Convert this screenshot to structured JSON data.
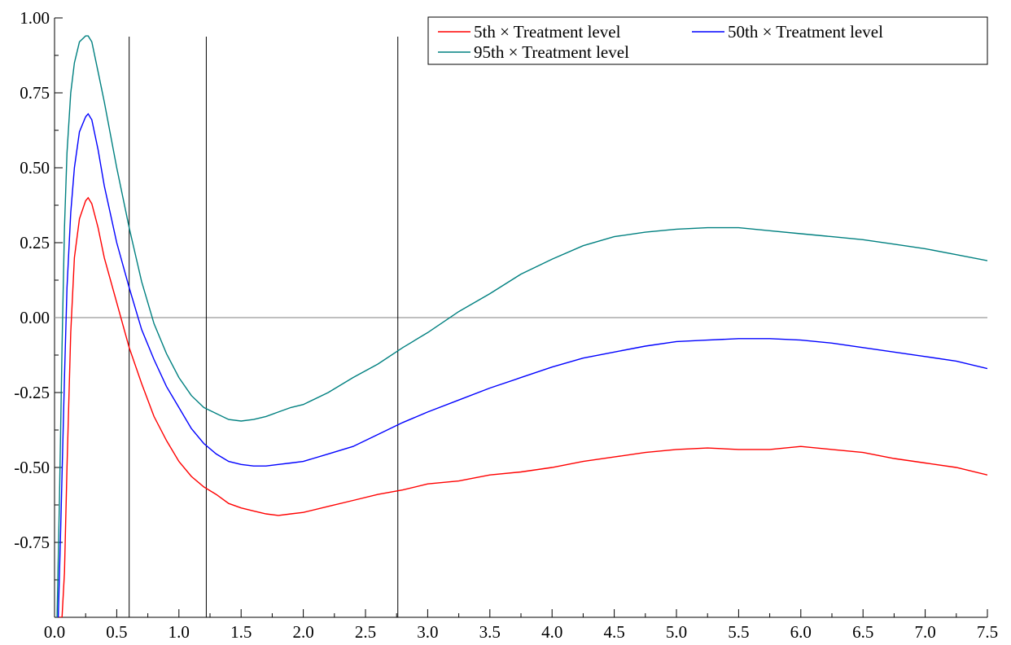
{
  "chart_data": {
    "type": "line",
    "title": "",
    "xlabel": "",
    "ylabel": "",
    "xlim": [
      0.0,
      7.5
    ],
    "ylim": [
      -1.0,
      1.0
    ],
    "grid": false,
    "legend_position": "top-right",
    "x_ticks": [
      "0.0",
      "0.5",
      "1.0",
      "1.5",
      "2.0",
      "2.5",
      "3.0",
      "3.5",
      "4.0",
      "4.5",
      "5.0",
      "5.5",
      "6.0",
      "6.5",
      "7.0",
      "7.5"
    ],
    "y_ticks": [
      "1.00",
      "0.75",
      "0.50",
      "0.25",
      "0.00",
      "-0.25",
      "-0.50",
      "-0.75"
    ],
    "vertical_lines": [
      0.6,
      1.22,
      2.76
    ],
    "zero_line": 0.0,
    "series": [
      {
        "name": "5th × Treatment level",
        "color": "#ff0000",
        "points": [
          [
            0.02,
            -1.0
          ],
          [
            0.06,
            -1.0
          ],
          [
            0.08,
            -0.85
          ],
          [
            0.1,
            -0.5
          ],
          [
            0.13,
            -0.05
          ],
          [
            0.16,
            0.2
          ],
          [
            0.2,
            0.33
          ],
          [
            0.25,
            0.39
          ],
          [
            0.27,
            0.4
          ],
          [
            0.3,
            0.38
          ],
          [
            0.35,
            0.3
          ],
          [
            0.4,
            0.2
          ],
          [
            0.5,
            0.05
          ],
          [
            0.6,
            -0.1
          ],
          [
            0.7,
            -0.22
          ],
          [
            0.8,
            -0.33
          ],
          [
            0.9,
            -0.41
          ],
          [
            1.0,
            -0.48
          ],
          [
            1.1,
            -0.53
          ],
          [
            1.2,
            -0.565
          ],
          [
            1.3,
            -0.59
          ],
          [
            1.4,
            -0.62
          ],
          [
            1.5,
            -0.635
          ],
          [
            1.6,
            -0.645
          ],
          [
            1.7,
            -0.655
          ],
          [
            1.8,
            -0.66
          ],
          [
            1.9,
            -0.655
          ],
          [
            2.0,
            -0.65
          ],
          [
            2.2,
            -0.63
          ],
          [
            2.4,
            -0.61
          ],
          [
            2.6,
            -0.59
          ],
          [
            2.8,
            -0.575
          ],
          [
            3.0,
            -0.555
          ],
          [
            3.25,
            -0.545
          ],
          [
            3.5,
            -0.525
          ],
          [
            3.75,
            -0.515
          ],
          [
            4.0,
            -0.5
          ],
          [
            4.25,
            -0.48
          ],
          [
            4.5,
            -0.465
          ],
          [
            4.75,
            -0.45
          ],
          [
            5.0,
            -0.44
          ],
          [
            5.25,
            -0.435
          ],
          [
            5.5,
            -0.44
          ],
          [
            5.75,
            -0.44
          ],
          [
            6.0,
            -0.43
          ],
          [
            6.25,
            -0.44
          ],
          [
            6.5,
            -0.45
          ],
          [
            6.75,
            -0.47
          ],
          [
            7.0,
            -0.485
          ],
          [
            7.25,
            -0.5
          ],
          [
            7.5,
            -0.525
          ]
        ]
      },
      {
        "name": "50th × Treatment level",
        "color": "#0000ff",
        "points": [
          [
            0.03,
            -1.0
          ],
          [
            0.05,
            -0.7
          ],
          [
            0.08,
            -0.2
          ],
          [
            0.1,
            0.1
          ],
          [
            0.13,
            0.35
          ],
          [
            0.16,
            0.5
          ],
          [
            0.2,
            0.62
          ],
          [
            0.25,
            0.67
          ],
          [
            0.27,
            0.68
          ],
          [
            0.3,
            0.66
          ],
          [
            0.35,
            0.56
          ],
          [
            0.4,
            0.44
          ],
          [
            0.5,
            0.25
          ],
          [
            0.6,
            0.1
          ],
          [
            0.7,
            -0.04
          ],
          [
            0.8,
            -0.14
          ],
          [
            0.9,
            -0.23
          ],
          [
            1.0,
            -0.3
          ],
          [
            1.1,
            -0.37
          ],
          [
            1.2,
            -0.42
          ],
          [
            1.3,
            -0.455
          ],
          [
            1.4,
            -0.48
          ],
          [
            1.5,
            -0.49
          ],
          [
            1.6,
            -0.495
          ],
          [
            1.7,
            -0.495
          ],
          [
            1.8,
            -0.49
          ],
          [
            1.9,
            -0.485
          ],
          [
            2.0,
            -0.48
          ],
          [
            2.2,
            -0.455
          ],
          [
            2.4,
            -0.43
          ],
          [
            2.6,
            -0.39
          ],
          [
            2.8,
            -0.35
          ],
          [
            3.0,
            -0.315
          ],
          [
            3.25,
            -0.275
          ],
          [
            3.5,
            -0.235
          ],
          [
            3.75,
            -0.2
          ],
          [
            4.0,
            -0.165
          ],
          [
            4.25,
            -0.135
          ],
          [
            4.5,
            -0.115
          ],
          [
            4.75,
            -0.095
          ],
          [
            5.0,
            -0.08
          ],
          [
            5.25,
            -0.075
          ],
          [
            5.5,
            -0.07
          ],
          [
            5.75,
            -0.07
          ],
          [
            6.0,
            -0.075
          ],
          [
            6.25,
            -0.085
          ],
          [
            6.5,
            -0.1
          ],
          [
            6.75,
            -0.115
          ],
          [
            7.0,
            -0.13
          ],
          [
            7.25,
            -0.145
          ],
          [
            7.5,
            -0.17
          ]
        ]
      },
      {
        "name": "95th × Treatment level",
        "color": "#008080",
        "points": [
          [
            0.02,
            -1.0
          ],
          [
            0.04,
            -0.6
          ],
          [
            0.06,
            -0.1
          ],
          [
            0.08,
            0.3
          ],
          [
            0.1,
            0.55
          ],
          [
            0.13,
            0.75
          ],
          [
            0.16,
            0.85
          ],
          [
            0.2,
            0.92
          ],
          [
            0.25,
            0.94
          ],
          [
            0.27,
            0.94
          ],
          [
            0.3,
            0.92
          ],
          [
            0.35,
            0.82
          ],
          [
            0.4,
            0.72
          ],
          [
            0.5,
            0.5
          ],
          [
            0.6,
            0.3
          ],
          [
            0.7,
            0.12
          ],
          [
            0.8,
            -0.02
          ],
          [
            0.9,
            -0.12
          ],
          [
            1.0,
            -0.2
          ],
          [
            1.1,
            -0.26
          ],
          [
            1.2,
            -0.3
          ],
          [
            1.3,
            -0.32
          ],
          [
            1.4,
            -0.34
          ],
          [
            1.5,
            -0.345
          ],
          [
            1.6,
            -0.34
          ],
          [
            1.7,
            -0.33
          ],
          [
            1.8,
            -0.315
          ],
          [
            1.9,
            -0.3
          ],
          [
            2.0,
            -0.29
          ],
          [
            2.2,
            -0.25
          ],
          [
            2.4,
            -0.2
          ],
          [
            2.6,
            -0.155
          ],
          [
            2.8,
            -0.1
          ],
          [
            3.0,
            -0.05
          ],
          [
            3.25,
            0.02
          ],
          [
            3.5,
            0.08
          ],
          [
            3.75,
            0.145
          ],
          [
            4.0,
            0.195
          ],
          [
            4.25,
            0.24
          ],
          [
            4.5,
            0.27
          ],
          [
            4.75,
            0.285
          ],
          [
            5.0,
            0.295
          ],
          [
            5.25,
            0.3
          ],
          [
            5.5,
            0.3
          ],
          [
            5.75,
            0.29
          ],
          [
            6.0,
            0.28
          ],
          [
            6.25,
            0.27
          ],
          [
            6.5,
            0.26
          ],
          [
            6.75,
            0.245
          ],
          [
            7.0,
            0.23
          ],
          [
            7.25,
            0.21
          ],
          [
            7.5,
            0.19
          ]
        ]
      }
    ]
  }
}
